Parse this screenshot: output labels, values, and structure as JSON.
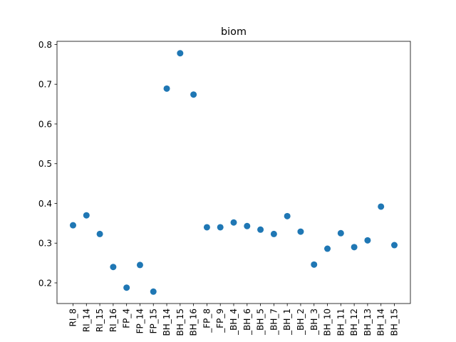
{
  "chart_data": {
    "type": "scatter",
    "title": "biom",
    "xlabel": "",
    "ylabel": "",
    "categories": [
      "RI_8",
      "RI_14",
      "RI_15",
      "RI_16",
      "FP_4",
      "FP_14",
      "FP_15",
      "BH_14",
      "BH_15",
      "BH_16",
      "_FP_8",
      "_FP_9",
      "_BH_4",
      "_BH_6",
      "_BH_5",
      "_BH_7",
      "_BH_1",
      "_BH_2",
      "_BH_3",
      "BH_10",
      "BH_11",
      "BH_12",
      "BH_13",
      "BH_14",
      "BH_15"
    ],
    "values": [
      0.345,
      0.37,
      0.323,
      0.24,
      0.188,
      0.245,
      0.178,
      0.689,
      0.778,
      0.674,
      0.34,
      0.34,
      0.352,
      0.343,
      0.334,
      0.323,
      0.368,
      0.329,
      0.246,
      0.286,
      0.325,
      0.29,
      0.307,
      0.392,
      0.295
    ],
    "ylim": [
      0.148,
      0.808
    ],
    "yticks": [
      "0.2",
      "0.3",
      "0.4",
      "0.5",
      "0.6",
      "0.7",
      "0.8"
    ],
    "grid": false,
    "colors": {
      "marker": "#1f77b4",
      "axis": "#000000"
    }
  }
}
